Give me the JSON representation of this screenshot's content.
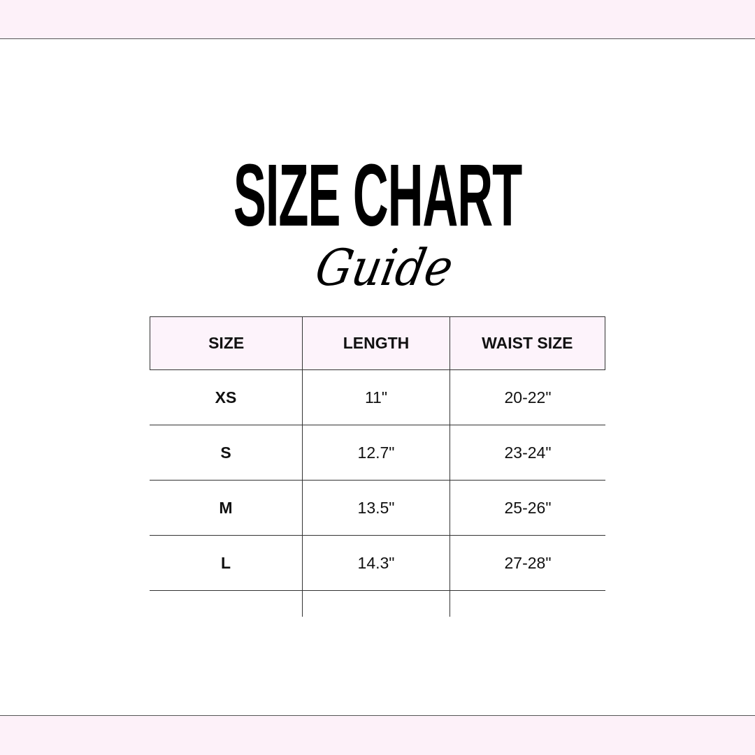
{
  "title": "SIZE CHART",
  "subtitle": "Guide",
  "table": {
    "headers": [
      "SIZE",
      "LENGTH",
      "WAIST SIZE"
    ],
    "rows": [
      [
        "XS",
        "11\"",
        "20-22\""
      ],
      [
        "S",
        "12.7\"",
        "23-24\""
      ],
      [
        "M",
        "13.5\"",
        "25-26\""
      ],
      [
        "L",
        "14.3\"",
        "27-28\""
      ]
    ]
  },
  "colors": {
    "band": "#fdf1f9",
    "header_bg": "#fdf3fb",
    "text": "#000000"
  }
}
